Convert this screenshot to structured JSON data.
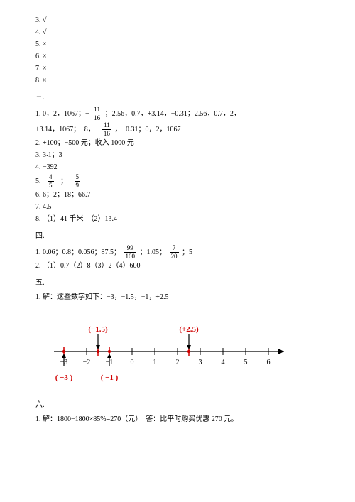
{
  "sec2_items": [
    "3. √",
    "4. √",
    "5. ×",
    "6. ×",
    "7. ×",
    "8. ×"
  ],
  "sec3_head": "三.",
  "sec3": {
    "l1a": "1. 0，2，1067；−",
    "l1_frac": {
      "n": "11",
      "d": "16"
    },
    "l1b": "；2.56，0.7，+3.14，−0.31；2.56，0.7，2，",
    "l2a": "+3.14，1067；−8，−",
    "l2_frac": {
      "n": "11",
      "d": "16"
    },
    "l2b": "，−0.31；0，2，1067",
    "l3": "2. +100；−500 元；收入 1000 元",
    "l4": "3. 3∶1；3",
    "l5": "4. −392",
    "l6a": "5.",
    "l6_frac1": {
      "n": "4",
      "d": "5"
    },
    "l6_mid": "；",
    "l6_frac2": {
      "n": "5",
      "d": "9"
    },
    "l7": "6. 6；2；18；66.7",
    "l8": "7. 4.5",
    "l9": "8. （1）41 千米　（2）13.4"
  },
  "sec4_head": "四.",
  "sec4": {
    "l1a": "1. 0.06；0.8；0.056；87.5；",
    "l1_frac1": {
      "n": "99",
      "d": "100"
    },
    "l1_mid": "；1.05；",
    "l1_frac2": {
      "n": "7",
      "d": "20"
    },
    "l1_end": "；5",
    "l2": "2. （1）0.7（2）8（3）2（4）600"
  },
  "sec5_head": "五.",
  "sec5": {
    "l1": "1. 解：这些数字如下：−3，−1.5，−1，+2.5"
  },
  "numberline": {
    "ticks": [
      "−3",
      "−2",
      "−1",
      "0",
      "1",
      "2",
      "3",
      "4",
      "5",
      "6"
    ],
    "top_labels": [
      {
        "x": -1.5,
        "text": "(−1.5)"
      },
      {
        "x": 2.5,
        "text": "(+2.5)"
      }
    ],
    "bottom_labels": [
      {
        "x": -3,
        "text": "( −3 )"
      },
      {
        "x": -1,
        "text": "( −1 )"
      }
    ],
    "red_points": [
      -3,
      -1.5,
      -1,
      2.5
    ],
    "colors": {
      "red": "#d00000",
      "black": "#000000"
    }
  },
  "sec6_head": "六.",
  "sec6": {
    "l1": "1. 解：1800−1800×85%=270（元）　答：比平时购买优惠 270 元。"
  }
}
